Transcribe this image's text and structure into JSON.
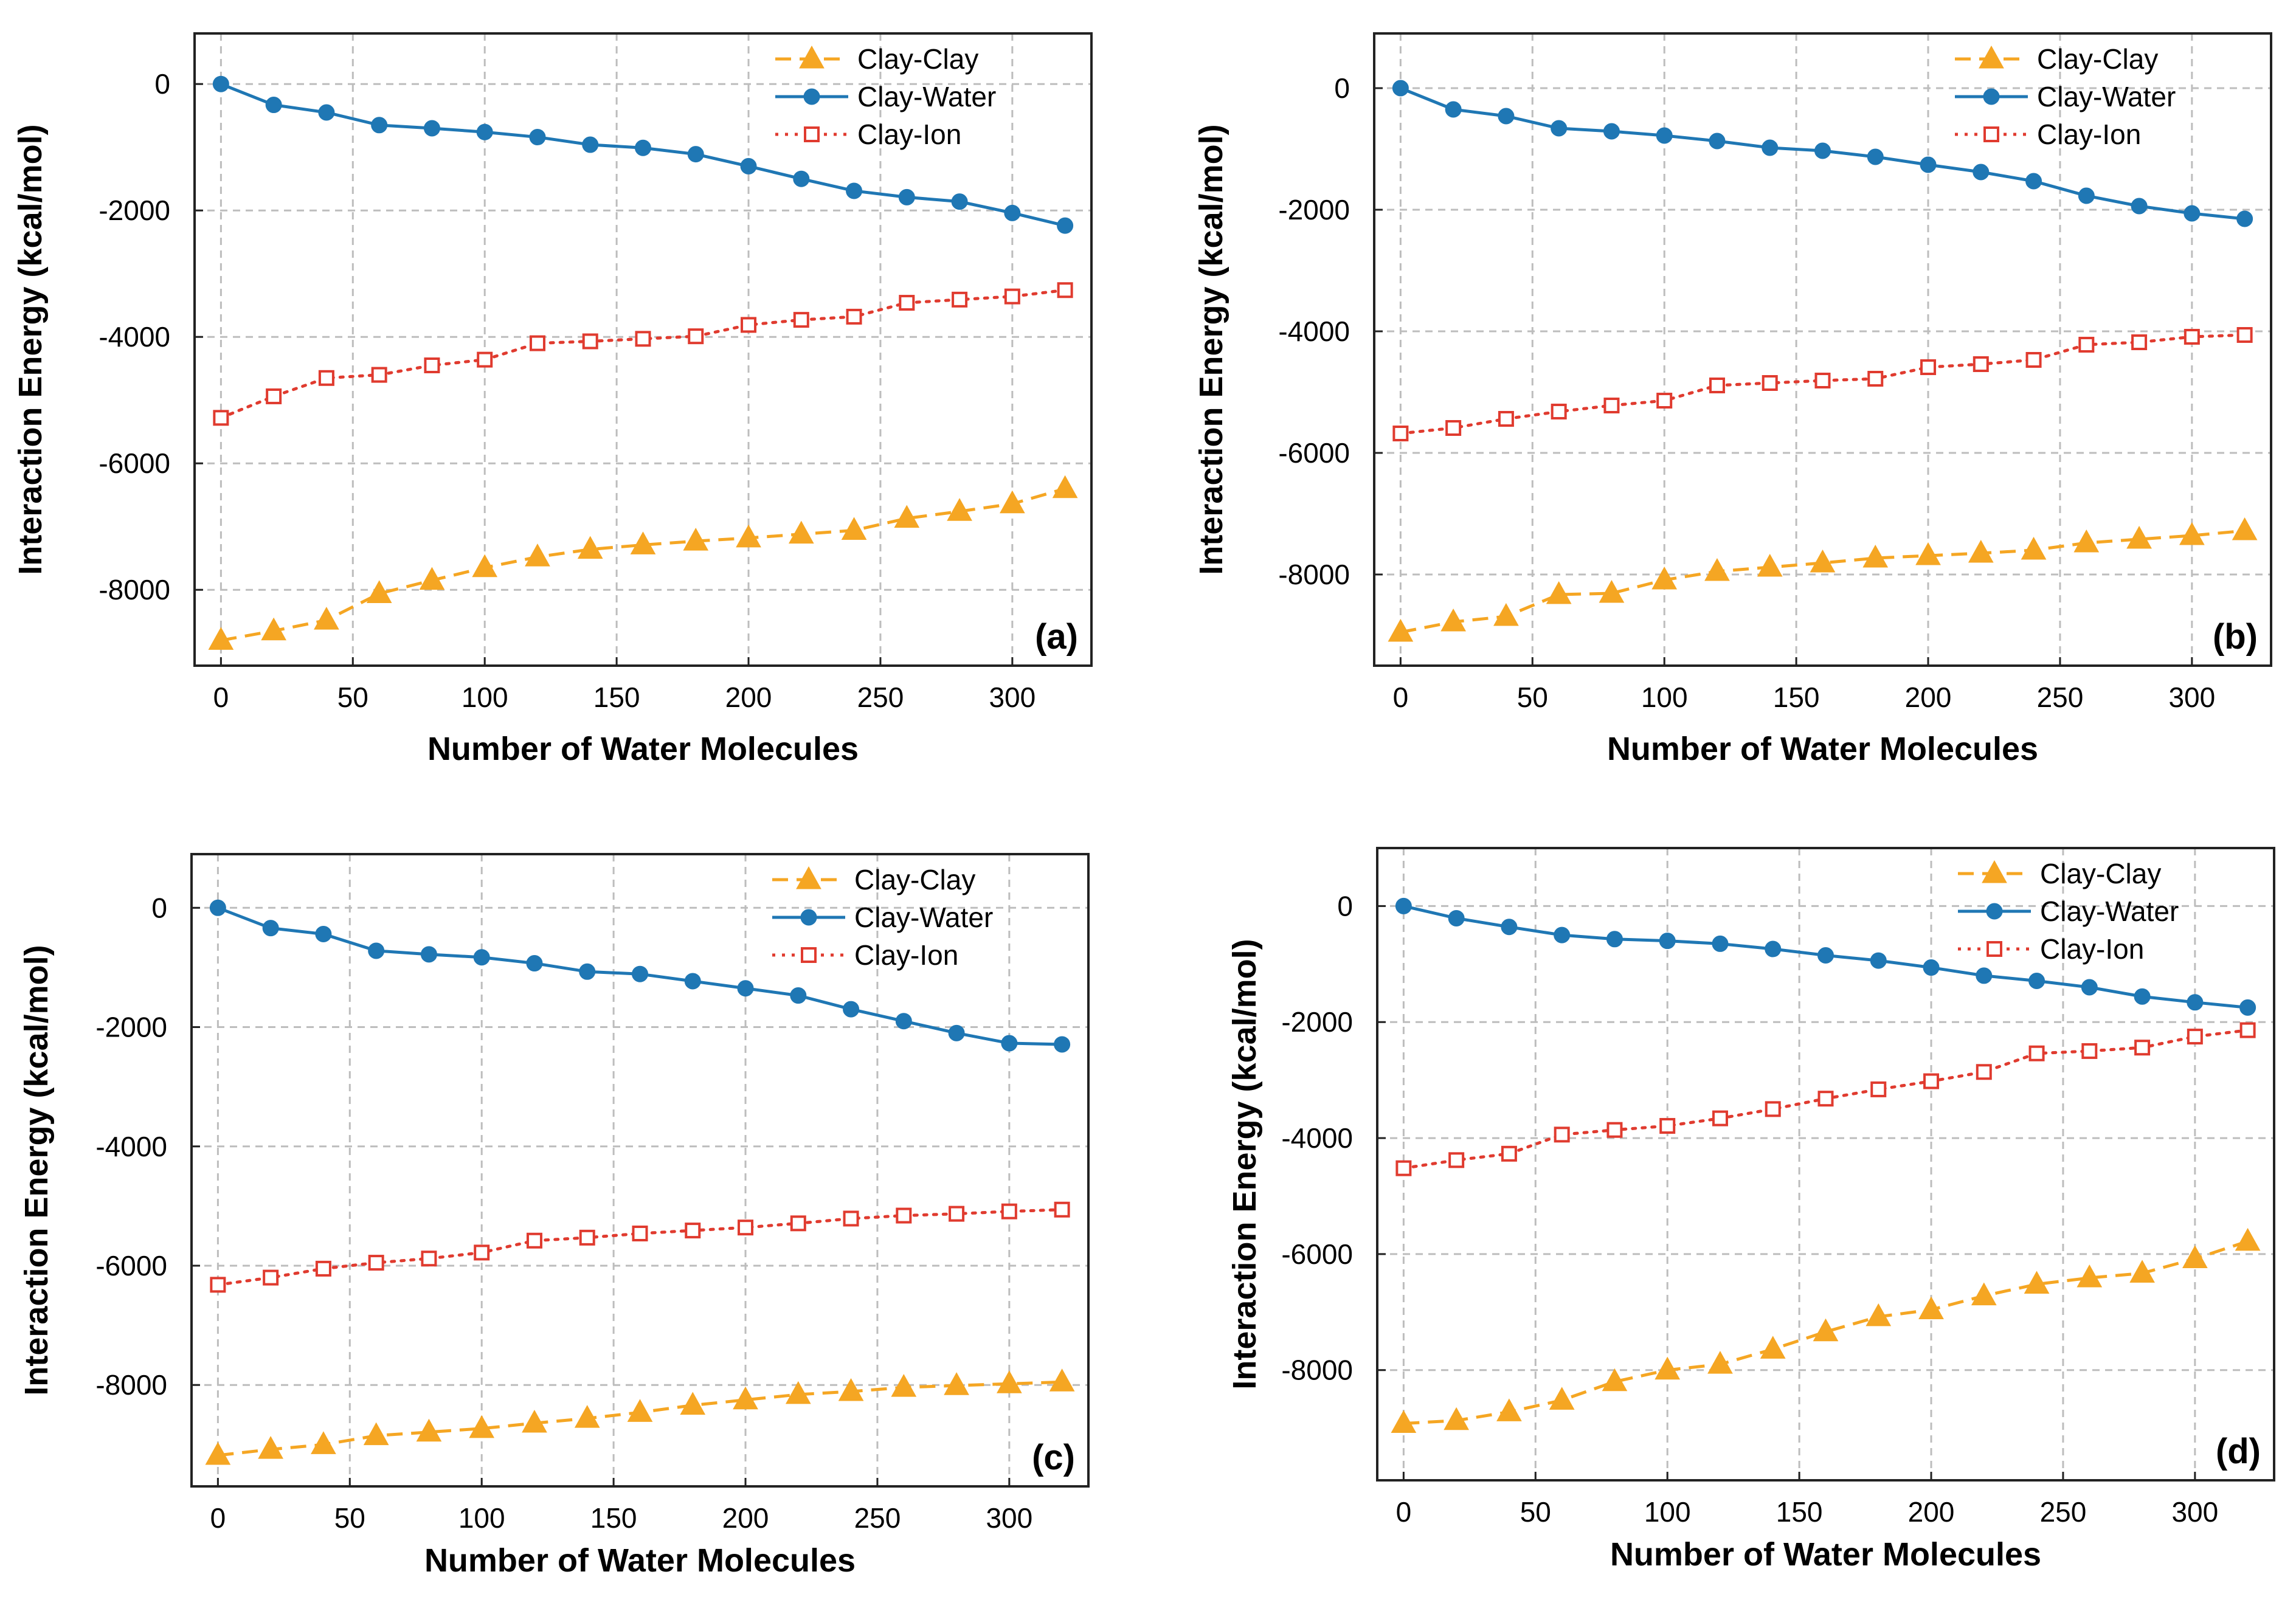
{
  "chart_data": [
    {
      "type": "line",
      "panel_label": "(a)",
      "xlabel": "Number of Water Molecules",
      "ylabel": "Interaction Energy (kcal/mol)",
      "xlim": [
        -10,
        330
      ],
      "ylim": [
        -9200,
        800
      ],
      "xticks": [
        0,
        50,
        100,
        150,
        200,
        250,
        300
      ],
      "yticks": [
        0,
        -2000,
        -4000,
        -6000,
        -8000
      ],
      "grid": true,
      "legend_position": "top-right",
      "x": [
        0,
        20,
        40,
        60,
        80,
        100,
        120,
        140,
        160,
        180,
        200,
        220,
        240,
        260,
        280,
        300,
        320
      ],
      "series": [
        {
          "name": "Clay-Clay",
          "color": "#F5A623",
          "marker": "triangle",
          "line": "dashed",
          "values": [
            -8800,
            -8650,
            -8480,
            -8060,
            -7850,
            -7650,
            -7480,
            -7360,
            -7290,
            -7230,
            -7180,
            -7120,
            -7060,
            -6870,
            -6760,
            -6640,
            -6400
          ]
        },
        {
          "name": "Clay-Water",
          "color": "#1F77B4",
          "marker": "circle",
          "line": "solid",
          "values": [
            0,
            -330,
            -450,
            -650,
            -700,
            -760,
            -840,
            -960,
            -1010,
            -1110,
            -1300,
            -1500,
            -1690,
            -1790,
            -1860,
            -2040,
            -2240
          ]
        },
        {
          "name": "Clay-Ion",
          "color": "#E03B2F",
          "marker": "open-square",
          "line": "dotted",
          "values": [
            -5280,
            -4940,
            -4650,
            -4600,
            -4450,
            -4360,
            -4100,
            -4070,
            -4030,
            -3990,
            -3810,
            -3730,
            -3680,
            -3460,
            -3410,
            -3360,
            -3260
          ]
        }
      ]
    },
    {
      "type": "line",
      "panel_label": "(b)",
      "xlabel": "Number of Water Molecules",
      "ylabel": "Interaction Energy (kcal/mol)",
      "xlim": [
        -10,
        330
      ],
      "ylim": [
        -9500,
        900
      ],
      "xticks": [
        0,
        50,
        100,
        150,
        200,
        250,
        300
      ],
      "yticks": [
        0,
        -2000,
        -4000,
        -6000,
        -8000
      ],
      "grid": true,
      "legend_position": "top-right",
      "x": [
        0,
        20,
        40,
        60,
        80,
        100,
        120,
        140,
        160,
        180,
        200,
        220,
        240,
        260,
        280,
        300,
        320
      ],
      "series": [
        {
          "name": "Clay-Clay",
          "color": "#F5A623",
          "marker": "triangle",
          "line": "dashed",
          "values": [
            -8950,
            -8780,
            -8690,
            -8330,
            -8310,
            -8090,
            -7950,
            -7880,
            -7810,
            -7730,
            -7690,
            -7650,
            -7600,
            -7480,
            -7420,
            -7360,
            -7280
          ]
        },
        {
          "name": "Clay-Water",
          "color": "#1F77B4",
          "marker": "circle",
          "line": "solid",
          "values": [
            0,
            -350,
            -460,
            -660,
            -710,
            -780,
            -870,
            -980,
            -1030,
            -1130,
            -1260,
            -1380,
            -1530,
            -1770,
            -1940,
            -2060,
            -2150
          ]
        },
        {
          "name": "Clay-Ion",
          "color": "#E03B2F",
          "marker": "open-square",
          "line": "dotted",
          "values": [
            -5680,
            -5590,
            -5440,
            -5320,
            -5220,
            -5140,
            -4890,
            -4850,
            -4810,
            -4780,
            -4590,
            -4540,
            -4470,
            -4220,
            -4180,
            -4090,
            -4060
          ]
        }
      ]
    },
    {
      "type": "line",
      "panel_label": "(c)",
      "xlabel": "Number of Water Molecules",
      "ylabel": "Interaction Energy (kcal/mol)",
      "xlim": [
        -10,
        330
      ],
      "ylim": [
        -9700,
        900
      ],
      "xticks": [
        0,
        50,
        100,
        150,
        200,
        250,
        300
      ],
      "yticks": [
        0,
        -2000,
        -4000,
        -6000,
        -8000
      ],
      "grid": true,
      "legend_position": "top-right",
      "x": [
        0,
        20,
        40,
        60,
        80,
        100,
        120,
        140,
        160,
        180,
        200,
        220,
        240,
        260,
        280,
        300,
        320
      ],
      "series": [
        {
          "name": "Clay-Clay",
          "color": "#F5A623",
          "marker": "triangle",
          "line": "dashed",
          "values": [
            -9180,
            -9080,
            -9000,
            -8850,
            -8790,
            -8730,
            -8640,
            -8560,
            -8460,
            -8340,
            -8250,
            -8160,
            -8110,
            -8040,
            -8010,
            -7980,
            -7950
          ]
        },
        {
          "name": "Clay-Water",
          "color": "#1F77B4",
          "marker": "circle",
          "line": "solid",
          "values": [
            0,
            -340,
            -440,
            -720,
            -780,
            -830,
            -930,
            -1070,
            -1110,
            -1230,
            -1350,
            -1470,
            -1700,
            -1900,
            -2100,
            -2270,
            -2290
          ]
        },
        {
          "name": "Clay-Ion",
          "color": "#E03B2F",
          "marker": "open-square",
          "line": "dotted",
          "values": [
            -6320,
            -6200,
            -6050,
            -5950,
            -5880,
            -5780,
            -5580,
            -5530,
            -5460,
            -5410,
            -5360,
            -5290,
            -5210,
            -5160,
            -5130,
            -5090,
            -5060
          ]
        }
      ]
    },
    {
      "type": "line",
      "panel_label": "(d)",
      "xlabel": "Number of Water Molecules",
      "ylabel": "Interaction Energy (kcal/mol)",
      "xlim": [
        -10,
        330
      ],
      "ylim": [
        -9900,
        1000
      ],
      "xticks": [
        0,
        50,
        100,
        150,
        200,
        250,
        300
      ],
      "yticks": [
        0,
        -2000,
        -4000,
        -6000,
        -8000
      ],
      "grid": true,
      "legend_position": "top-right",
      "x": [
        0,
        20,
        40,
        60,
        80,
        100,
        120,
        140,
        160,
        180,
        200,
        220,
        240,
        260,
        280,
        300,
        320
      ],
      "series": [
        {
          "name": "Clay-Clay",
          "color": "#F5A623",
          "marker": "triangle",
          "line": "dashed",
          "values": [
            -8920,
            -8870,
            -8720,
            -8520,
            -8200,
            -8000,
            -7900,
            -7640,
            -7340,
            -7080,
            -6960,
            -6720,
            -6520,
            -6410,
            -6330,
            -6080,
            -5780
          ]
        },
        {
          "name": "Clay-Water",
          "color": "#1F77B4",
          "marker": "circle",
          "line": "solid",
          "values": [
            0,
            -210,
            -360,
            -500,
            -570,
            -600,
            -650,
            -740,
            -850,
            -940,
            -1060,
            -1200,
            -1290,
            -1400,
            -1560,
            -1660,
            -1750
          ]
        },
        {
          "name": "Clay-Ion",
          "color": "#E03B2F",
          "marker": "open-square",
          "line": "dotted",
          "values": [
            -4520,
            -4380,
            -4270,
            -3940,
            -3860,
            -3790,
            -3660,
            -3500,
            -3320,
            -3160,
            -3020,
            -2860,
            -2540,
            -2500,
            -2440,
            -2250,
            -2140
          ]
        }
      ]
    }
  ]
}
